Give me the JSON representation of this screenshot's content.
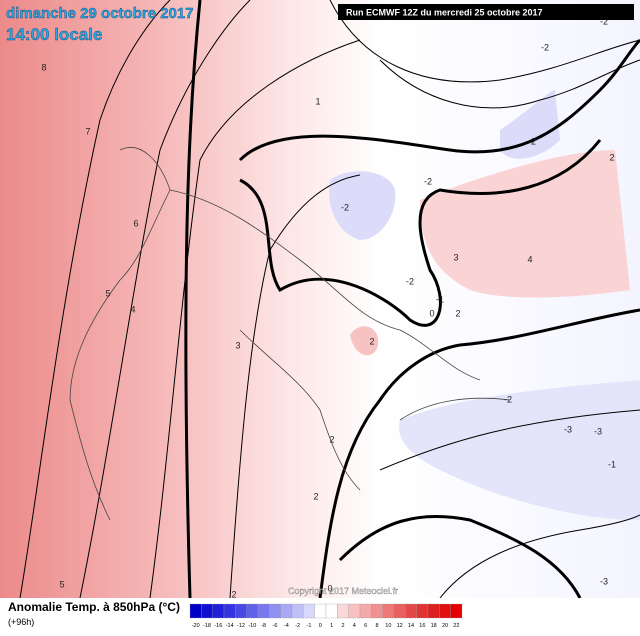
{
  "header": {
    "date": "dimanche 29 octobre 2017",
    "time": "14:00 locale",
    "run": "Run ECMWF 12Z du mercredi 25 octobre 2017"
  },
  "footer": {
    "title": "Anomalie Temp. à 850hPa (°C)",
    "lead": "(+96h)",
    "copyright": "Copyright 2017 Meteociel.fr"
  },
  "legend": {
    "ticks": [
      "-20",
      "-18",
      "-16",
      "-14",
      "-12",
      "-10",
      "-8",
      "-6",
      "-4",
      "-2",
      "-1",
      "0",
      "1",
      "2",
      "4",
      "6",
      "8",
      "10",
      "12",
      "14",
      "16",
      "18",
      "20",
      "22"
    ]
  },
  "contour_labels": [
    "8",
    "7",
    "6",
    "5",
    "4",
    "3",
    "1",
    "-2",
    "-2",
    "-2",
    "-2",
    "-2",
    "2",
    "3",
    "4",
    "-2",
    "-1",
    "2",
    "2",
    "2",
    "2",
    "-3",
    "-3",
    "-1",
    "-3",
    "-2",
    "0",
    "0",
    "5",
    "2"
  ]
}
